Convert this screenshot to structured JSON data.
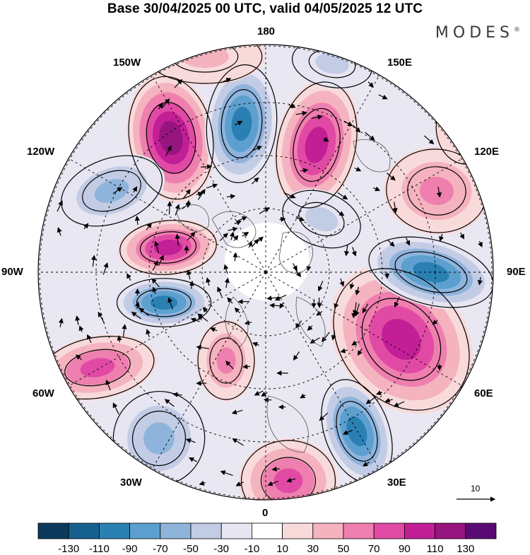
{
  "header": {
    "title": "Base 30/04/2025 00 UTC, valid 04/05/2025 12 UTC",
    "brand": "MODES",
    "brand_mark": "®"
  },
  "longitude_labels": {
    "top": "180",
    "bottom": "0",
    "left": "90W",
    "right": "90E",
    "nw_upper": "150W",
    "nw_lower": "120W",
    "ne_upper": "150E",
    "ne_lower": "120E",
    "sw_upper": "60W",
    "sw_lower": "30W",
    "se_upper": "60E",
    "se_lower": "30E"
  },
  "vector_scale": {
    "label": "10"
  },
  "colorbar": {
    "colors": [
      "#0b3a5c",
      "#16608f",
      "#2a7fb3",
      "#5da0cf",
      "#8fb4dc",
      "#c3cce5",
      "#e6e5f1",
      "#ffffff",
      "#f9dada",
      "#f4b3bf",
      "#ee7fae",
      "#e04aa4",
      "#c21f96",
      "#97157f",
      "#5a0b73"
    ],
    "labels": [
      "-130",
      "-110",
      "-90",
      "-70",
      "-50",
      "-30",
      "-10",
      "10",
      "30",
      "50",
      "70",
      "90",
      "110",
      "130"
    ]
  }
}
